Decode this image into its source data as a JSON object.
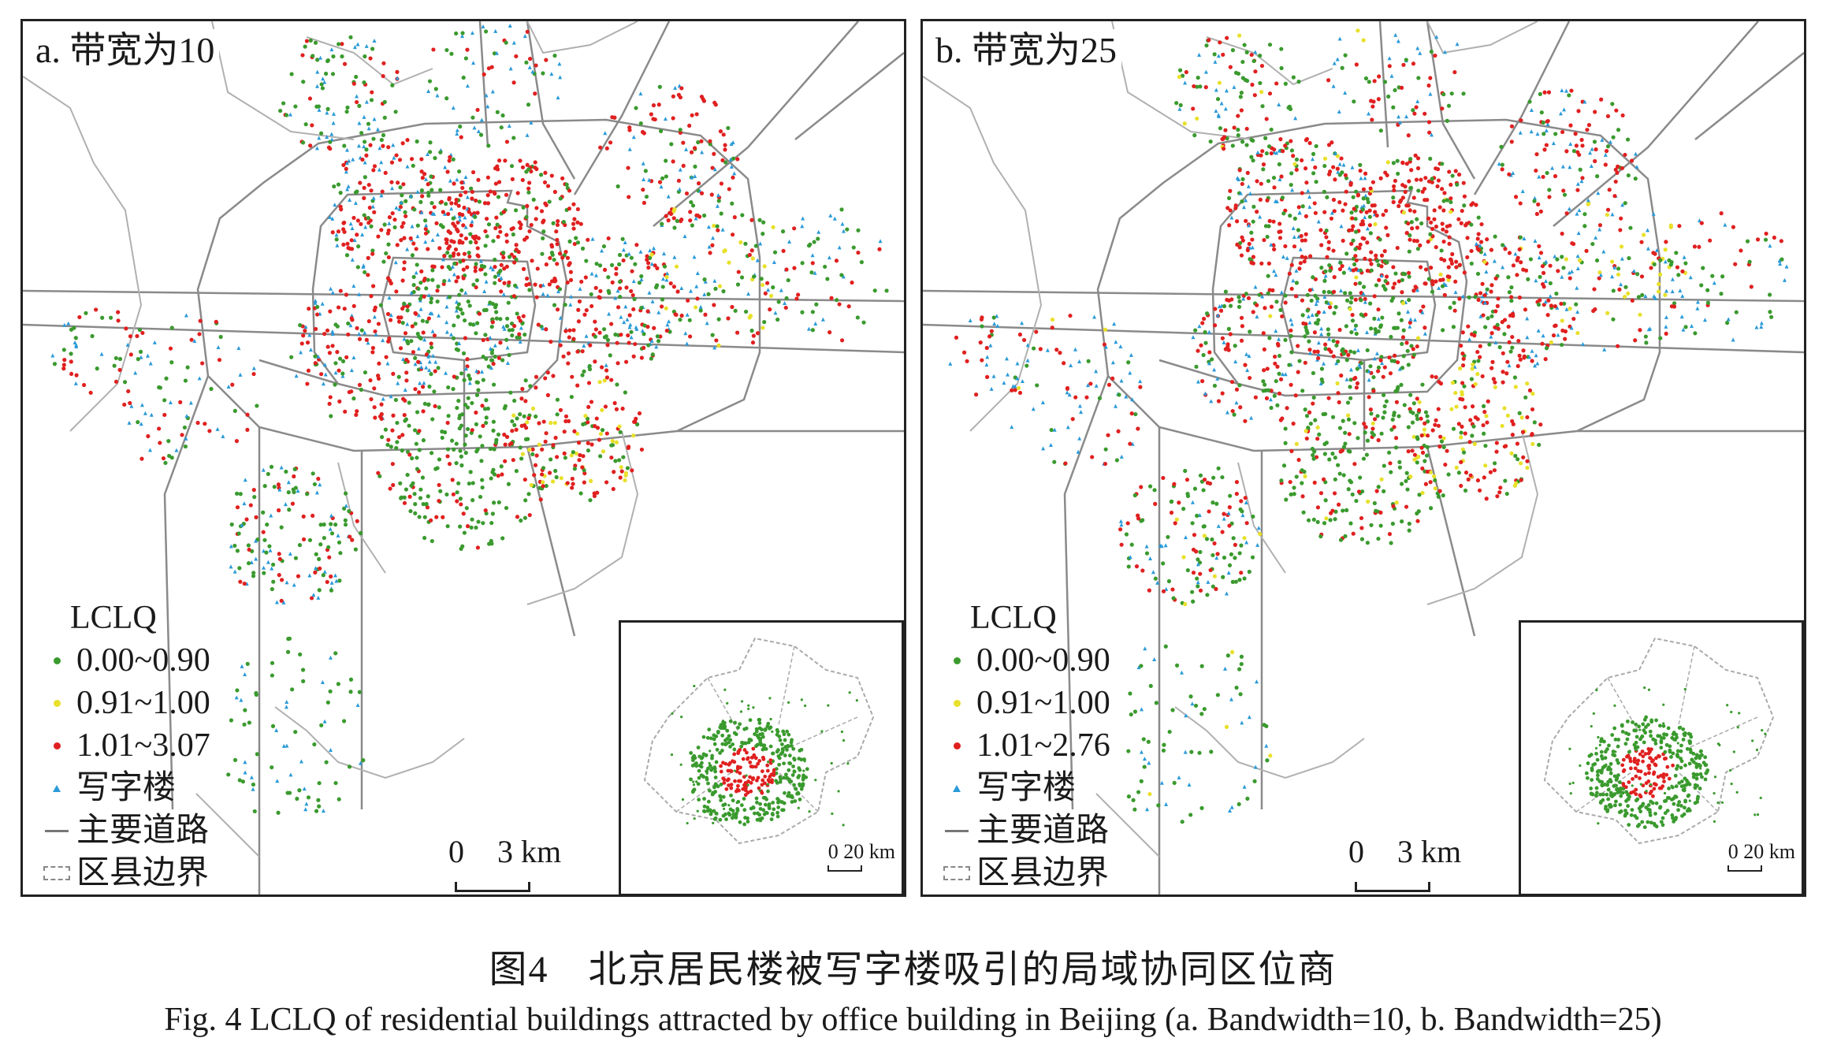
{
  "panels": [
    {
      "title": "a. 带宽为10",
      "legend": {
        "title": "LCLQ",
        "items": [
          {
            "label": "0.00~0.90",
            "color": "#3a9a2e"
          },
          {
            "label": "0.91~1.00",
            "color": "#e8e02a"
          },
          {
            "label": "1.01~3.07",
            "color": "#e02020"
          },
          {
            "label": "写字楼",
            "color": "#2a9ad8"
          },
          {
            "label": "主要道路",
            "color": "#777777"
          },
          {
            "label": "区县边界",
            "color": "#999999"
          }
        ]
      },
      "scale": {
        "zero": "0",
        "distance": "3 km"
      },
      "inset_scale": {
        "zero": "0",
        "distance": "20 km"
      }
    },
    {
      "title": "b. 带宽为25",
      "legend": {
        "title": "LCLQ",
        "items": [
          {
            "label": "0.00~0.90",
            "color": "#3a9a2e"
          },
          {
            "label": "0.91~1.00",
            "color": "#e8e02a"
          },
          {
            "label": "1.01~2.76",
            "color": "#e02020"
          },
          {
            "label": "写字楼",
            "color": "#2a9ad8"
          },
          {
            "label": "主要道路",
            "color": "#777777"
          },
          {
            "label": "区县边界",
            "color": "#999999"
          }
        ]
      },
      "scale": {
        "zero": "0",
        "distance": "3 km"
      },
      "inset_scale": {
        "zero": "0",
        "distance": "20 km"
      }
    }
  ],
  "caption": {
    "zh": "图4　北京居民楼被写字楼吸引的局域协同区位商",
    "en": "Fig. 4   LCLQ of residential buildings attracted by office building in Beijing (a. Bandwidth=10, b. Bandwidth=25)"
  }
}
